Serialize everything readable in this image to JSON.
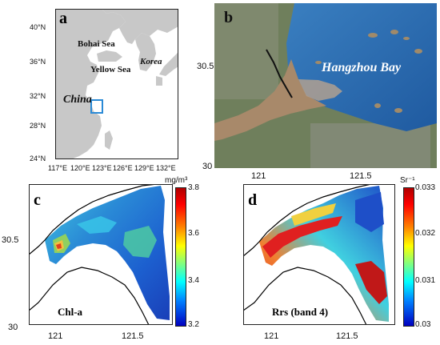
{
  "panel_a": {
    "letter": "a",
    "lat_ticks": [
      "40°N",
      "36°N",
      "32°N",
      "28°N",
      "24°N"
    ],
    "lon_ticks": [
      "117°E",
      "120°E",
      "123°E",
      "126°E",
      "129°E",
      "132°E"
    ],
    "labels": {
      "bohai": "Bohai Sea",
      "yellow": "Yellow Sea",
      "korea": "Korea",
      "china": "China"
    },
    "colors": {
      "land": "#c8c8c8",
      "sea": "#ffffff",
      "box": "#2a8ad6"
    }
  },
  "panel_b": {
    "letter": "b",
    "label": "Hangzhou Bay",
    "lat_ticks": [
      "30.5",
      "30"
    ],
    "lon_ticks": [
      "121",
      "121.5"
    ]
  },
  "panel_c": {
    "letter": "c",
    "variable": "Chl-a",
    "unit": "mg/m³",
    "colorbar_ticks": [
      "3.8",
      "3.6",
      "3.4",
      "3.2"
    ],
    "lat_ticks": [
      "30.5",
      "30"
    ],
    "lon_ticks": [
      "121",
      "121.5"
    ]
  },
  "panel_d": {
    "letter": "d",
    "variable": "Rrs (band 4)",
    "unit": "Sr⁻¹",
    "colorbar_ticks": [
      "0.033",
      "0.032",
      "0.031",
      "0.03"
    ],
    "lat_ticks": [],
    "lon_ticks": [
      "121",
      "121.5"
    ]
  }
}
